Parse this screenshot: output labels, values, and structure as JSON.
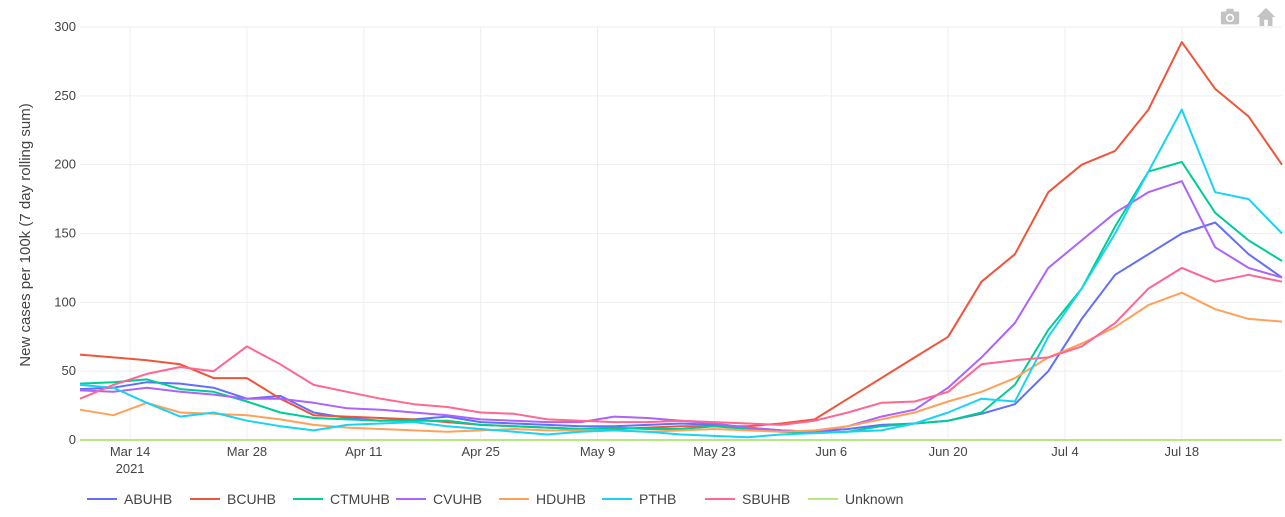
{
  "toolbar": {
    "camera_icon": "camera-icon",
    "home_icon": "home-icon"
  },
  "chart_data": {
    "type": "line",
    "title": "",
    "xlabel": "",
    "ylabel": "New cases per 100k (7 day rolling sum)",
    "ylim": [
      0,
      300
    ],
    "yticks": [
      0,
      50,
      100,
      150,
      200,
      250,
      300
    ],
    "x_start": "2021-03-08",
    "x_end": "2021-07-30",
    "xticks": [
      {
        "date": "2021-03-14",
        "label": "Mar 14",
        "sublabel": "2021"
      },
      {
        "date": "2021-03-28",
        "label": "Mar 28",
        "sublabel": ""
      },
      {
        "date": "2021-04-11",
        "label": "Apr 11",
        "sublabel": ""
      },
      {
        "date": "2021-04-25",
        "label": "Apr 25",
        "sublabel": ""
      },
      {
        "date": "2021-05-09",
        "label": "May 9",
        "sublabel": ""
      },
      {
        "date": "2021-05-23",
        "label": "May 23",
        "sublabel": ""
      },
      {
        "date": "2021-06-06",
        "label": "Jun 6",
        "sublabel": ""
      },
      {
        "date": "2021-06-20",
        "label": "Jun 20",
        "sublabel": ""
      },
      {
        "date": "2021-07-04",
        "label": "Jul 4",
        "sublabel": ""
      },
      {
        "date": "2021-07-18",
        "label": "Jul 18",
        "sublabel": ""
      }
    ],
    "grid": true,
    "legend_position": "bottom",
    "x": [
      "2021-03-08",
      "2021-03-12",
      "2021-03-16",
      "2021-03-20",
      "2021-03-24",
      "2021-03-28",
      "2021-04-01",
      "2021-04-05",
      "2021-04-09",
      "2021-04-13",
      "2021-04-17",
      "2021-04-21",
      "2021-04-25",
      "2021-04-29",
      "2021-05-03",
      "2021-05-07",
      "2021-05-11",
      "2021-05-15",
      "2021-05-19",
      "2021-05-23",
      "2021-05-27",
      "2021-05-31",
      "2021-06-04",
      "2021-06-08",
      "2021-06-12",
      "2021-06-16",
      "2021-06-20",
      "2021-06-24",
      "2021-06-28",
      "2021-07-02",
      "2021-07-06",
      "2021-07-10",
      "2021-07-14",
      "2021-07-18",
      "2021-07-22",
      "2021-07-26",
      "2021-07-30"
    ],
    "series": [
      {
        "name": "ABUHB",
        "color": "#636efa",
        "values": [
          37,
          38,
          42,
          41,
          38,
          30,
          32,
          20,
          16,
          14,
          15,
          17,
          13,
          12,
          11,
          10,
          10,
          11,
          12,
          11,
          9,
          7,
          6,
          8,
          11,
          12,
          14,
          19,
          26,
          50,
          88,
          120,
          135,
          150,
          158,
          135,
          118
        ]
      },
      {
        "name": "BCUHB",
        "color": "#ef553b",
        "values": [
          62,
          60,
          58,
          55,
          45,
          45,
          30,
          18,
          17,
          16,
          15,
          13,
          11,
          10,
          9,
          8,
          8,
          9,
          10,
          10,
          10,
          12,
          15,
          30,
          45,
          60,
          75,
          115,
          135,
          180,
          200,
          210,
          240,
          289,
          255,
          235,
          200
        ]
      },
      {
        "name": "CTMUHB",
        "color": "#00cc96",
        "values": [
          41,
          42,
          44,
          37,
          35,
          28,
          20,
          16,
          15,
          14,
          14,
          14,
          11,
          10,
          9,
          8,
          9,
          8,
          8,
          10,
          8,
          6,
          5,
          6,
          10,
          12,
          14,
          20,
          40,
          80,
          110,
          155,
          195,
          202,
          165,
          145,
          130
        ]
      },
      {
        "name": "CVUHB",
        "color": "#ab63fa",
        "values": [
          36,
          35,
          38,
          35,
          33,
          30,
          30,
          27,
          23,
          22,
          20,
          18,
          15,
          14,
          13,
          13,
          17,
          16,
          14,
          12,
          9,
          7,
          6,
          10,
          17,
          22,
          38,
          60,
          85,
          125,
          145,
          165,
          180,
          188,
          140,
          125,
          118
        ]
      },
      {
        "name": "HDUHB",
        "color": "#ffa15a",
        "values": [
          22,
          18,
          27,
          20,
          19,
          18,
          15,
          11,
          9,
          8,
          7,
          6,
          7,
          8,
          7,
          7,
          7,
          6,
          7,
          8,
          7,
          6,
          7,
          10,
          15,
          20,
          28,
          35,
          45,
          60,
          70,
          82,
          98,
          107,
          95,
          88,
          86
        ]
      },
      {
        "name": "PTHB",
        "color": "#19d3f3",
        "values": [
          40,
          38,
          27,
          17,
          20,
          14,
          10,
          7,
          11,
          12,
          13,
          10,
          8,
          6,
          4,
          6,
          7,
          6,
          4,
          3,
          2,
          4,
          5,
          6,
          7,
          12,
          20,
          30,
          28,
          75,
          110,
          150,
          195,
          240,
          180,
          175,
          150
        ]
      },
      {
        "name": "SBUHB",
        "color": "#ff6692",
        "values": [
          30,
          40,
          48,
          53,
          50,
          68,
          55,
          40,
          35,
          30,
          26,
          24,
          20,
          19,
          15,
          14,
          13,
          13,
          14,
          13,
          12,
          11,
          14,
          20,
          27,
          28,
          35,
          55,
          58,
          60,
          68,
          85,
          110,
          125,
          115,
          120,
          115
        ]
      },
      {
        "name": "Unknown",
        "color": "#b6e880",
        "values": [
          0,
          0,
          0,
          0,
          0,
          0,
          0,
          0,
          0,
          0,
          0,
          0,
          0,
          0,
          0,
          0,
          0,
          0,
          0,
          0,
          0,
          0,
          0,
          0,
          0,
          0,
          0,
          0,
          0,
          0,
          0,
          0,
          0,
          0,
          0,
          0,
          0
        ]
      }
    ]
  }
}
